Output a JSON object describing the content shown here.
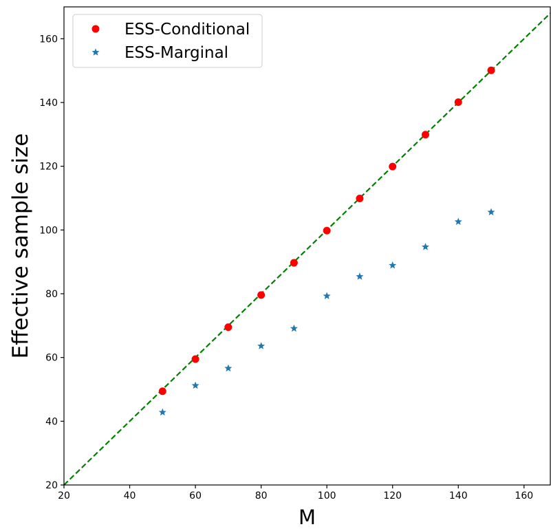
{
  "chart_data": {
    "type": "scatter",
    "xlabel": "M",
    "ylabel": "Effective sample size",
    "xlim": [
      20,
      168
    ],
    "ylim": [
      20,
      170
    ],
    "xticks": [
      20,
      40,
      60,
      80,
      100,
      120,
      140,
      160
    ],
    "yticks": [
      20,
      40,
      60,
      80,
      100,
      120,
      140,
      160
    ],
    "grid": false,
    "legend_position": "top-left",
    "reference_line": {
      "style": "dashed",
      "color": "#008000",
      "x": [
        20,
        168
      ],
      "y": [
        20,
        168
      ]
    },
    "series": [
      {
        "name": "ESS-Conditional",
        "marker": "circle",
        "color": "#ff0000",
        "x": [
          50,
          60,
          70,
          80,
          90,
          100,
          110,
          120,
          130,
          140,
          150
        ],
        "y": [
          49.4,
          59.5,
          69.5,
          79.6,
          89.7,
          99.8,
          109.9,
          119.9,
          129.9,
          140.1,
          150.1
        ]
      },
      {
        "name": "ESS-Marginal",
        "marker": "star",
        "color": "#1f77b4",
        "x": [
          50,
          60,
          70,
          80,
          90,
          100,
          110,
          120,
          130,
          140,
          150
        ],
        "y": [
          42.8,
          51.2,
          56.6,
          63.6,
          69.1,
          79.3,
          85.4,
          88.9,
          94.7,
          102.6,
          105.6
        ]
      }
    ]
  }
}
